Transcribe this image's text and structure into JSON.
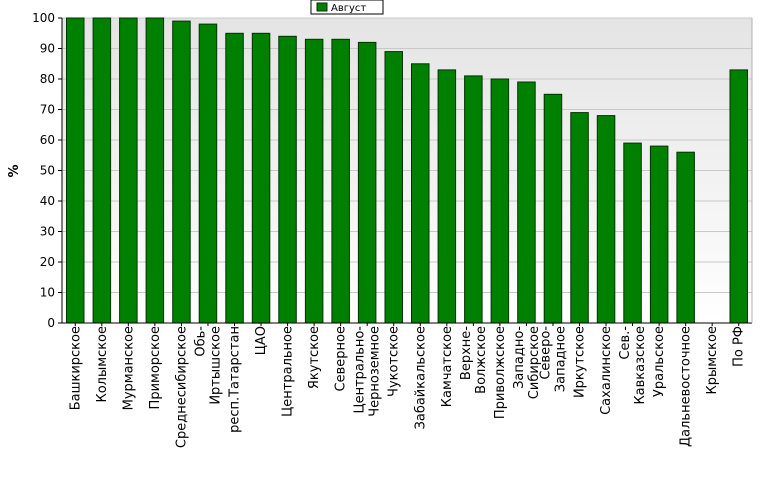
{
  "chart_data": {
    "type": "bar",
    "ylabel": "%",
    "ylim": [
      0,
      100
    ],
    "yticks": [
      0,
      10,
      20,
      30,
      40,
      50,
      60,
      70,
      80,
      90,
      100
    ],
    "grid": true,
    "legend_position": "top-center",
    "colors": {
      "bar": "#008000",
      "bar_edge": "#003300",
      "plot_bg_top": "#e4e4e4",
      "plot_bg_bottom": "#ffffff",
      "grid": "#c8c8c8"
    },
    "categories": [
      "Башкирское",
      "Колымское",
      "Мурманское",
      "Приморское",
      "Среднесибирское",
      "Обь-\nИртышское",
      "респ.Татарстан",
      "ЦАО",
      "Центральное",
      "Якутское",
      "Северное",
      "Центрально-\nЧерноземное",
      "Чукотское",
      "Забайкальское",
      "Камчатское",
      "Верхне-\nВолжское",
      "Приволжское",
      "Западно-\nСибирское",
      "Северо-\nЗападное",
      "Иркутское",
      "Сахалинское",
      "Сев.-\nКавказское",
      "Уральское",
      "Дальневосточное",
      "Крымское",
      "По РФ"
    ],
    "series": [
      {
        "name": "Август",
        "values": [
          100,
          100,
          100,
          100,
          99,
          98,
          95,
          95,
          94,
          93,
          93,
          92,
          89,
          85,
          83,
          81,
          80,
          79,
          75,
          69,
          68,
          59,
          58,
          56,
          0,
          83
        ]
      }
    ]
  }
}
